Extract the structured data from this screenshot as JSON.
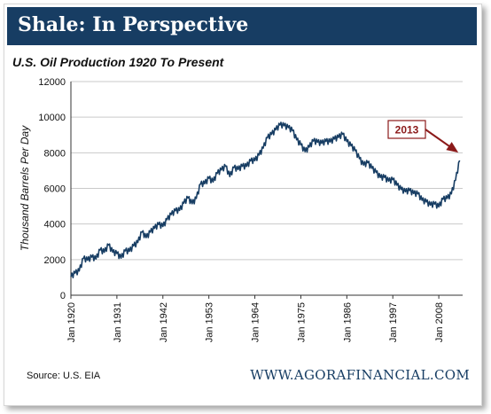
{
  "header": {
    "banner_title": "Shale: In Perspective",
    "banner_color": "#173d63"
  },
  "footer": {
    "source": "Source: U.S. EIA",
    "site": "WWW.AGORAFINANCIAL.COM"
  },
  "chart_data": {
    "type": "line",
    "title": "U.S. Oil Production 1920 To Present",
    "xlabel": "",
    "ylabel": "Thousand Barrels Per Day",
    "xlim": [
      1920,
      2013.7
    ],
    "ylim": [
      0,
      12000
    ],
    "yticks": [
      0,
      2000,
      4000,
      6000,
      8000,
      10000,
      12000
    ],
    "ytick_labels": [
      "0",
      "2000",
      "4000",
      "6000",
      "8000",
      "10000",
      "12000"
    ],
    "xticks": [
      1920,
      1931,
      1942,
      1953,
      1964,
      1975,
      1986,
      1997,
      2008
    ],
    "xtick_labels": [
      "Jan 1920",
      "Jan 1931",
      "Jan 1942",
      "Jan 1953",
      "Jan 1964",
      "Jan 1975",
      "Jan 1986",
      "Jan 1997",
      "Jan 2008"
    ],
    "grid": true,
    "line_color": "#173d63",
    "series": [
      {
        "x": [
          1920,
          1921,
          1922,
          1923,
          1924,
          1925,
          1926,
          1927,
          1928,
          1929,
          1930,
          1931,
          1932,
          1933,
          1934,
          1935,
          1936,
          1937,
          1938,
          1939,
          1940,
          1941,
          1942,
          1943,
          1944,
          1945,
          1946,
          1947,
          1948,
          1949,
          1950,
          1951,
          1952,
          1953,
          1954,
          1955,
          1956,
          1957,
          1958,
          1959,
          1960,
          1961,
          1962,
          1963,
          1964,
          1965,
          1966,
          1967,
          1968,
          1969,
          1970,
          1971,
          1972,
          1973,
          1974,
          1975,
          1976,
          1977,
          1978,
          1979,
          1980,
          1981,
          1982,
          1983,
          1984,
          1985,
          1986,
          1987,
          1988,
          1989,
          1990,
          1991,
          1992,
          1993,
          1994,
          1995,
          1996,
          1997,
          1998,
          1999,
          2000,
          2001,
          2002,
          2003,
          2004,
          2005,
          2006,
          2007,
          2008,
          2009,
          2010,
          2011,
          2012,
          2013
        ],
        "values": [
          1100,
          1200,
          1400,
          2000,
          2000,
          2100,
          2100,
          2500,
          2450,
          2750,
          2450,
          2300,
          2150,
          2450,
          2500,
          2700,
          3000,
          3500,
          3300,
          3500,
          3800,
          3900,
          3900,
          4200,
          4600,
          4700,
          4800,
          5100,
          5500,
          5100,
          5500,
          6200,
          6300,
          6500,
          6400,
          6800,
          7100,
          7200,
          6700,
          7100,
          7100,
          7200,
          7300,
          7500,
          7600,
          7800,
          8300,
          8800,
          9100,
          9250,
          9600,
          9450,
          9450,
          9200,
          8800,
          8400,
          8100,
          8250,
          8700,
          8550,
          8600,
          8600,
          8650,
          8700,
          8900,
          9000,
          8700,
          8350,
          8150,
          7600,
          7350,
          7400,
          7200,
          6850,
          6650,
          6550,
          6450,
          6450,
          6250,
          5900,
          5850,
          5800,
          5750,
          5650,
          5400,
          5200,
          5100,
          5050,
          5000,
          5350,
          5500,
          5650,
          6500,
          7500
        ]
      }
    ],
    "annotations": [
      {
        "text": "2013",
        "x": 2013,
        "y": 7500
      }
    ]
  }
}
